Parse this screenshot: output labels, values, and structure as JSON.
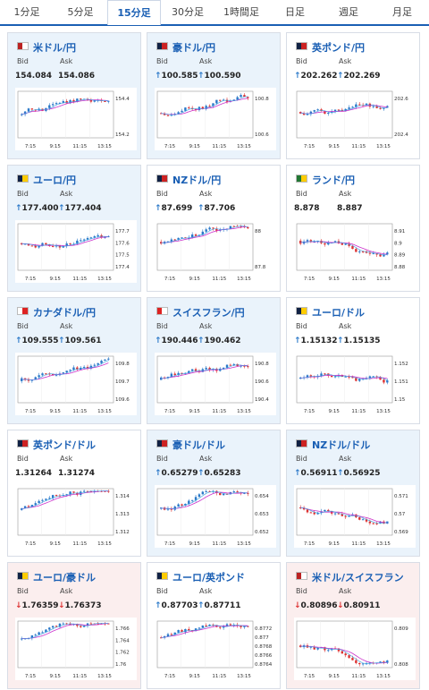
{
  "tabs": [
    "1分足",
    "5分足",
    "15分足",
    "30分足",
    "1時間足",
    "日足",
    "週足",
    "月足"
  ],
  "active_tab": "15分足",
  "labels": {
    "bid": "Bid",
    "ask": "Ask"
  },
  "x_ticks": [
    "7:15",
    "9:15",
    "11:15",
    "13:15"
  ],
  "cards": [
    {
      "name": "米ドル/円",
      "bid": "154.084",
      "ask": "154.086",
      "dir": "none",
      "yticks": [
        "154.4",
        "154.2"
      ],
      "flag": "us"
    },
    {
      "name": "豪ドル/円",
      "bid": "100.585",
      "ask": "100.590",
      "dir": "up",
      "yticks": [
        "100.8",
        "100.6"
      ],
      "flag": "au"
    },
    {
      "name": "英ポンド/円",
      "bid": "202.262",
      "ask": "202.269",
      "dir": "up",
      "yticks": [
        "202.6",
        "202.4"
      ],
      "flag": "gb"
    },
    {
      "name": "ユーロ/円",
      "bid": "177.400",
      "ask": "177.404",
      "dir": "up",
      "yticks": [
        "177.7",
        "177.6",
        "177.5",
        "177.4"
      ],
      "flag": "eu"
    },
    {
      "name": "NZドル/円",
      "bid": "87.699",
      "ask": "87.706",
      "dir": "up",
      "yticks": [
        "88",
        "87.8"
      ],
      "flag": "nz"
    },
    {
      "name": "ランド/円",
      "bid": "8.878",
      "ask": "8.887",
      "dir": "none",
      "yticks": [
        "8.91",
        "8.9",
        "8.89",
        "8.88"
      ],
      "flag": "za"
    },
    {
      "name": "カナダドル/円",
      "bid": "109.555",
      "ask": "109.561",
      "dir": "up",
      "yticks": [
        "109.8",
        "109.7",
        "109.6"
      ],
      "flag": "ca"
    },
    {
      "name": "スイスフラン/円",
      "bid": "190.446",
      "ask": "190.462",
      "dir": "up",
      "yticks": [
        "190.8",
        "190.6",
        "190.4"
      ],
      "flag": "ch"
    },
    {
      "name": "ユーロ/ドル",
      "bid": "1.15132",
      "ask": "1.15135",
      "dir": "up",
      "yticks": [
        "1.152",
        "1.151",
        "1.15"
      ],
      "flag": "eu-us"
    },
    {
      "name": "英ポンド/ドル",
      "bid": "1.31264",
      "ask": "1.31274",
      "dir": "none",
      "yticks": [
        "1.314",
        "1.313",
        "1.312"
      ],
      "flag": "gb-us"
    },
    {
      "name": "豪ドル/ドル",
      "bid": "0.65279",
      "ask": "0.65283",
      "dir": "up",
      "yticks": [
        "0.654",
        "0.653",
        "0.652"
      ],
      "flag": "au-us"
    },
    {
      "name": "NZドル/ドル",
      "bid": "0.56911",
      "ask": "0.56925",
      "dir": "up",
      "yticks": [
        "0.571",
        "0.57",
        "0.569"
      ],
      "flag": "nz-us"
    },
    {
      "name": "ユーロ/豪ドル",
      "bid": "1.76359",
      "ask": "1.76373",
      "dir": "down",
      "yticks": [
        "1.766",
        "1.764",
        "1.762",
        "1.76"
      ],
      "flag": "eu-au"
    },
    {
      "name": "ユーロ/英ポンド",
      "bid": "0.87703",
      "ask": "0.87711",
      "dir": "up",
      "yticks": [
        "0.8772",
        "0.877",
        "0.8768",
        "0.8766",
        "0.8764"
      ],
      "flag": "eu-gb"
    },
    {
      "name": "米ドル/スイスフラン",
      "bid": "0.80896",
      "ask": "0.80911",
      "dir": "down",
      "yticks": [
        "0.809",
        "0.808"
      ],
      "flag": "us-ch"
    }
  ],
  "colors": {
    "up": "#2a78c8",
    "down": "#d33",
    "tab_active": "#1a5fb4",
    "ma": "#cc33cc",
    "blue_bg": "#eaf3fb",
    "pink_bg": "#fbeeee"
  }
}
